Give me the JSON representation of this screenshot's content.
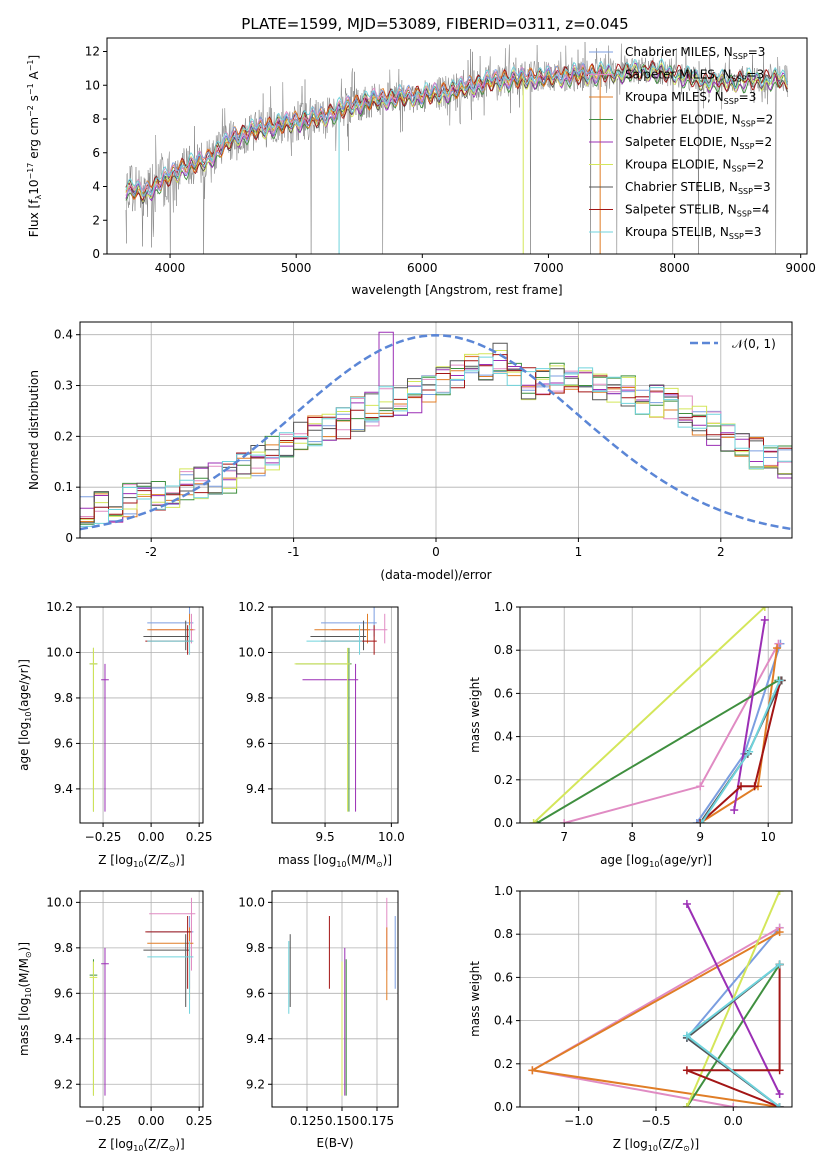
{
  "figure_title": "PLATE=1599, MJD=53089, FIBERID=0311, z=0.045",
  "colors": {
    "Chabrier MILES": "#7b9ee0",
    "Salpeter MILES": "#e08bc3",
    "Kroupa MILES": "#e07d26",
    "Chabrier ELODIE": "#3f8f3f",
    "Salpeter ELODIE": "#9b2fb5",
    "Kroupa ELODIE": "#d4e65a",
    "Chabrier STELIB": "#555555",
    "Salpeter STELIB": "#a31515",
    "Kroupa STELIB": "#6fd3dc",
    "normal": "#5b86d6",
    "data": "#808080"
  },
  "chart_data": [
    {
      "id": "spectrum",
      "type": "line",
      "xlabel": "wavelength [Angstrom, rest frame]",
      "ylabel_parts": [
        "Flux [",
        "f",
        "λ",
        "10",
        "−17",
        " erg cm",
        "−2",
        " s",
        "−1",
        " A",
        "−1",
        "]"
      ],
      "xlim": [
        3500,
        9050
      ],
      "ylim": [
        0,
        12.8
      ],
      "xticks": [
        4000,
        5000,
        6000,
        7000,
        8000,
        9000
      ],
      "yticks": [
        0,
        2,
        4,
        6,
        8,
        10,
        12
      ],
      "grid": false,
      "legend_position": "upper-right",
      "legend": [
        {
          "pre": "Chabrier MILES, N",
          "sub": "SSP",
          "post": "=3",
          "model": "Chabrier MILES"
        },
        {
          "pre": "Salpeter MILES, N",
          "sub": "SSP",
          "post": "=3",
          "model": "Salpeter MILES"
        },
        {
          "pre": "Kroupa MILES, N",
          "sub": "SSP",
          "post": "=3",
          "model": "Kroupa MILES"
        },
        {
          "pre": "Chabrier ELODIE, N",
          "sub": "SSP",
          "post": "=2",
          "model": "Chabrier ELODIE"
        },
        {
          "pre": "Salpeter ELODIE, N",
          "sub": "SSP",
          "post": "=2",
          "model": "Salpeter ELODIE"
        },
        {
          "pre": "Kroupa ELODIE, N",
          "sub": "SSP",
          "post": "=2",
          "model": "Kroupa ELODIE"
        },
        {
          "pre": "Chabrier STELIB, N",
          "sub": "SSP",
          "post": "=3",
          "model": "Chabrier STELIB"
        },
        {
          "pre": "Salpeter STELIB, N",
          "sub": "SSP",
          "post": "=4",
          "model": "Salpeter STELIB"
        },
        {
          "pre": "Kroupa STELIB, N",
          "sub": "SSP",
          "post": "=3",
          "model": "Kroupa STELIB"
        }
      ],
      "continuum": [
        [
          3650,
          3.9
        ],
        [
          3800,
          3.6
        ],
        [
          3950,
          4.4
        ],
        [
          4100,
          5.1
        ],
        [
          4300,
          5.6
        ],
        [
          4500,
          6.9
        ],
        [
          4700,
          7.4
        ],
        [
          4900,
          7.7
        ],
        [
          5100,
          8.0
        ],
        [
          5200,
          8.1
        ],
        [
          5400,
          8.7
        ],
        [
          5600,
          9.1
        ],
        [
          5800,
          9.3
        ],
        [
          6000,
          9.4
        ],
        [
          6200,
          9.6
        ],
        [
          6400,
          10.0
        ],
        [
          6600,
          10.3
        ],
        [
          6800,
          10.4
        ],
        [
          7000,
          10.5
        ],
        [
          7200,
          10.6
        ],
        [
          7400,
          10.7
        ],
        [
          7600,
          10.8
        ],
        [
          7800,
          10.9
        ],
        [
          8000,
          10.7
        ],
        [
          8200,
          10.3
        ],
        [
          8400,
          10.2
        ],
        [
          8600,
          10.3
        ],
        [
          8800,
          10.4
        ],
        [
          8900,
          10.2
        ]
      ]
    },
    {
      "id": "residuals",
      "type": "histogram",
      "xlabel": "(data-model)/error",
      "ylabel": "Normed distribution",
      "xlim": [
        -2.5,
        2.5
      ],
      "ylim": [
        0,
        0.425
      ],
      "xticks": [
        -2,
        -1,
        0,
        1,
        2
      ],
      "yticks": [
        0.0,
        0.1,
        0.2,
        0.3,
        0.4
      ],
      "grid": true,
      "legend_position": "upper-right",
      "legend_label": "𝒩(0, 1)",
      "bin_width": 0.1,
      "base_shape": [
        0.055,
        0.06,
        0.065,
        0.075,
        0.08,
        0.09,
        0.095,
        0.105,
        0.11,
        0.115,
        0.12,
        0.135,
        0.15,
        0.165,
        0.18,
        0.2,
        0.21,
        0.22,
        0.23,
        0.245,
        0.255,
        0.265,
        0.27,
        0.28,
        0.295,
        0.31,
        0.32,
        0.33,
        0.34,
        0.35,
        0.31,
        0.305,
        0.3,
        0.315,
        0.32,
        0.305,
        0.3,
        0.29,
        0.285,
        0.275,
        0.27,
        0.26,
        0.245,
        0.23,
        0.215,
        0.2,
        0.185,
        0.17,
        0.16,
        0.15
      ]
    },
    {
      "id": "z-age",
      "type": "scatter",
      "xlabel_parts": [
        "Z [log",
        "10",
        "(Z/Z",
        "⊙",
        ")]"
      ],
      "ylabel_parts": [
        "age  [log",
        "10",
        "(age/yr)]"
      ],
      "xlim": [
        -0.37,
        0.27
      ],
      "ylim": [
        9.25,
        10.2
      ],
      "xticks": [
        -0.25,
        0.0,
        0.25
      ],
      "xtick_labels": [
        "−0.25",
        "0.00",
        "0.25"
      ],
      "yticks": [
        9.4,
        9.6,
        9.8,
        10.0,
        10.2
      ],
      "ytick_labels": [
        "9.4",
        "9.6",
        "9.8",
        "10.0",
        "10.2"
      ],
      "grid": true
    },
    {
      "id": "mass-age",
      "type": "scatter",
      "xlabel_parts": [
        "mass [log",
        "10",
        "(M/M",
        "⊙",
        ")]"
      ],
      "xlim": [
        9.1,
        10.05
      ],
      "ylim": [
        9.25,
        10.2
      ],
      "xticks": [
        9.5,
        10.0
      ],
      "xtick_labels": [
        "9.5",
        "10.0"
      ],
      "yticks": [
        9.4,
        9.6,
        9.8,
        10.0,
        10.2
      ],
      "ytick_labels": [
        "9.4",
        "9.6",
        "9.8",
        "10.0",
        "10.2"
      ],
      "grid": true
    },
    {
      "id": "age-weight",
      "type": "line",
      "xlabel_parts": [
        "age  [log",
        "10",
        "(age/yr)]"
      ],
      "ylabel": "mass weight",
      "xlim": [
        6.35,
        10.35
      ],
      "ylim": [
        0,
        1.0
      ],
      "xticks": [
        7,
        8,
        9,
        10
      ],
      "xtick_labels": [
        "7",
        "8",
        "9",
        "10"
      ],
      "yticks": [
        0,
        0.2,
        0.4,
        0.6,
        0.8,
        1.0
      ],
      "ytick_labels": [
        "0.0",
        "0.2",
        "0.4",
        "0.6",
        "0.8",
        "1.0"
      ],
      "grid": true
    },
    {
      "id": "z-mass",
      "type": "scatter",
      "xlabel_parts": [
        "Z [log",
        "10",
        "(Z/Z",
        "⊙",
        ")]"
      ],
      "ylabel_parts": [
        "mass [log",
        "10",
        "(M/M",
        "⊙",
        ")]"
      ],
      "xlim": [
        -0.37,
        0.27
      ],
      "ylim": [
        9.1,
        10.05
      ],
      "xticks": [
        -0.25,
        0.0,
        0.25
      ],
      "xtick_labels": [
        "−0.25",
        "0.00",
        "0.25"
      ],
      "yticks": [
        9.2,
        9.4,
        9.6,
        9.8,
        10.0
      ],
      "ytick_labels": [
        "9.2",
        "9.4",
        "9.6",
        "9.8",
        "10.0"
      ],
      "grid": true
    },
    {
      "id": "ebv-mass",
      "type": "scatter",
      "xlabel": "E(B-V)",
      "xlim": [
        0.1,
        0.19
      ],
      "ylim": [
        9.1,
        10.05
      ],
      "xticks": [
        0.125,
        0.15,
        0.175
      ],
      "xtick_labels": [
        "0.125",
        "0.150",
        "0.175"
      ],
      "yticks": [
        9.2,
        9.4,
        9.6,
        9.8,
        10.0
      ],
      "ytick_labels": [
        "9.2",
        "9.4",
        "9.6",
        "9.8",
        "10.0"
      ],
      "grid": true
    },
    {
      "id": "z-weight",
      "type": "line",
      "xlabel_parts": [
        "Z [log",
        "10",
        "(Z/Z",
        "⊙",
        ")]"
      ],
      "ylabel": "mass weight",
      "xlim": [
        -1.38,
        0.38
      ],
      "ylim": [
        0,
        1.0
      ],
      "xticks": [
        -1.0,
        -0.5,
        0.0
      ],
      "xtick_labels": [
        "−1.0",
        "−0.5",
        "0.0"
      ],
      "yticks": [
        0,
        0.2,
        0.4,
        0.6,
        0.8,
        1.0
      ],
      "ytick_labels": [
        "0.0",
        "0.2",
        "0.4",
        "0.6",
        "0.8",
        "1.0"
      ],
      "grid": true
    }
  ],
  "models": [
    {
      "name": "Chabrier MILES",
      "Z": 0.2,
      "age": 10.13,
      "mass": 9.87,
      "ebv": 0.188,
      "comps": [
        {
          "age": 8.95,
          "Z": 0.3,
          "w": 0.0
        },
        {
          "age": 9.65,
          "Z": -0.3,
          "w": 0.32
        },
        {
          "age": 10.18,
          "Z": 0.3,
          "w": 0.83
        }
      ]
    },
    {
      "name": "Salpeter MILES",
      "Z": 0.21,
      "age": 10.1,
      "mass": 9.95,
      "ebv": 0.182,
      "comps": [
        {
          "age": 7.0,
          "Z": 0.0,
          "w": 0.0
        },
        {
          "age": 9.0,
          "Z": -1.3,
          "w": 0.17
        },
        {
          "age": 10.15,
          "Z": 0.3,
          "w": 0.83
        }
      ]
    },
    {
      "name": "Kroupa MILES",
      "Z": 0.2,
      "age": 10.1,
      "mass": 9.82,
      "ebv": 0.182,
      "comps": [
        {
          "age": 9.0,
          "Z": 0.3,
          "w": 0.0
        },
        {
          "age": 9.85,
          "Z": -1.3,
          "w": 0.17
        },
        {
          "age": 10.13,
          "Z": 0.3,
          "w": 0.81
        }
      ]
    },
    {
      "name": "Chabrier ELODIE",
      "Z": -0.3,
      "age": 9.95,
      "mass": 9.68,
      "ebv": 0.153,
      "comps": [
        {
          "age": 6.6,
          "Z": -0.3,
          "w": 0.0
        },
        {
          "age": 10.15,
          "Z": 0.3,
          "w": 0.66
        }
      ]
    },
    {
      "name": "Salpeter ELODIE",
      "Z": -0.24,
      "age": 9.88,
      "mass": 9.73,
      "ebv": 0.152,
      "comps": [
        {
          "age": 9.5,
          "Z": 0.3,
          "w": 0.06
        },
        {
          "age": 9.95,
          "Z": -0.3,
          "w": 0.94
        }
      ]
    },
    {
      "name": "Kroupa ELODIE",
      "Z": -0.3,
      "age": 9.95,
      "mass": 9.67,
      "ebv": 0.15,
      "comps": [
        {
          "age": 6.55,
          "Z": -0.3,
          "w": 0.0
        },
        {
          "age": 9.95,
          "Z": 0.3,
          "w": 1.0
        }
      ]
    },
    {
      "name": "Chabrier STELIB",
      "Z": 0.18,
      "age": 10.07,
      "mass": 9.79,
      "ebv": 0.113,
      "comps": [
        {
          "age": 9.0,
          "Z": 0.3,
          "w": 0.0
        },
        {
          "age": 9.7,
          "Z": -0.3,
          "w": 0.32
        },
        {
          "age": 10.2,
          "Z": 0.3,
          "w": 0.66
        }
      ]
    },
    {
      "name": "Salpeter STELIB",
      "Z": 0.19,
      "age": 10.05,
      "mass": 9.87,
      "ebv": 0.141,
      "comps": [
        {
          "age": 9.0,
          "Z": 0.3,
          "w": 0.0
        },
        {
          "age": 9.6,
          "Z": -0.3,
          "w": 0.17
        },
        {
          "age": 9.8,
          "Z": 0.3,
          "w": 0.17
        },
        {
          "age": 10.18,
          "Z": 0.3,
          "w": 0.66
        }
      ]
    },
    {
      "name": "Kroupa STELIB",
      "Z": 0.2,
      "age": 10.05,
      "mass": 9.76,
      "ebv": 0.112,
      "comps": [
        {
          "age": 9.02,
          "Z": 0.3,
          "w": 0.0
        },
        {
          "age": 9.72,
          "Z": -0.3,
          "w": 0.33
        },
        {
          "age": 10.17,
          "Z": 0.3,
          "w": 0.66
        }
      ]
    }
  ]
}
